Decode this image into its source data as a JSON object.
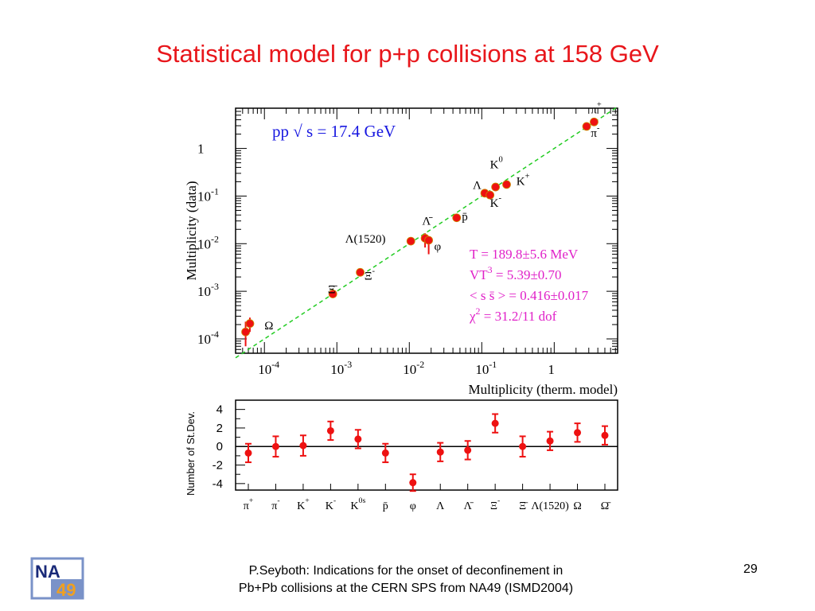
{
  "slide": {
    "title": "Statistical model for p+p collisions at 158 GeV",
    "footer_line1": "P.Seyboth: Indications for the onset of deconfinement in",
    "footer_line2": "Pb+Pb collisions at the CERN SPS from NA49   (ISMD2004)",
    "page_number": "29",
    "logo_text_top": "NA",
    "logo_text_bottom": "49"
  },
  "colors": {
    "title": "#e8161b",
    "points": "#ee1111",
    "fit_line": "#22cc22",
    "params": "#e020c8",
    "label": "#1818e0"
  },
  "chart_data": [
    {
      "type": "scatter",
      "annotation": "pp  √ s = 17.4 GeV",
      "xlabel": "Multiplicity (therm. model)",
      "ylabel": "Multiplicity (data)",
      "xscale": "log",
      "yscale": "log",
      "xlim": [
        4e-05,
        7.5
      ],
      "ylim": [
        5e-05,
        7
      ],
      "x_ticks": [
        {
          "value": 0.0001,
          "base": "10",
          "exp": "-4"
        },
        {
          "value": 0.001,
          "base": "10",
          "exp": "-3"
        },
        {
          "value": 0.01,
          "base": "10",
          "exp": "-2"
        },
        {
          "value": 0.1,
          "base": "10",
          "exp": "-1"
        },
        {
          "value": 1,
          "base": "1",
          "exp": ""
        }
      ],
      "y_ticks": [
        {
          "value": 0.0001,
          "base": "10",
          "exp": "-4"
        },
        {
          "value": 0.001,
          "base": "10",
          "exp": "-3"
        },
        {
          "value": 0.01,
          "base": "10",
          "exp": "-2"
        },
        {
          "value": 0.1,
          "base": "10",
          "exp": "-1"
        },
        {
          "value": 1,
          "base": "1",
          "exp": ""
        }
      ],
      "fit_line": {
        "x": [
          4e-05,
          7.5
        ],
        "y": [
          4e-05,
          7.5
        ]
      },
      "points": [
        {
          "x": 5.5e-05,
          "y": 0.00014,
          "err_lo": 7e-05,
          "err_hi": 0.00023
        },
        {
          "x": 6.3e-05,
          "y": 0.00021,
          "err_lo": 0.00014,
          "err_hi": 0.00028
        },
        {
          "x": 0.00088,
          "y": 0.00088,
          "err_lo": 0.00084,
          "err_hi": 0.00093
        },
        {
          "x": 0.0021,
          "y": 0.0025,
          "err_lo": 0.0024,
          "err_hi": 0.0026
        },
        {
          "x": 0.0105,
          "y": 0.0113,
          "err_lo": 0.0105,
          "err_hi": 0.0121
        },
        {
          "x": 0.0165,
          "y": 0.013,
          "err_lo": 0.0083,
          "err_hi": 0.0165
        },
        {
          "x": 0.0185,
          "y": 0.0118,
          "err_lo": 0.006,
          "err_hi": 0.0142
        },
        {
          "x": 0.045,
          "y": 0.035,
          "err_lo": 0.033,
          "err_hi": 0.037
        },
        {
          "x": 0.11,
          "y": 0.115,
          "err_lo": 0.11,
          "err_hi": 0.12
        },
        {
          "x": 0.13,
          "y": 0.105,
          "err_lo": 0.1,
          "err_hi": 0.11
        },
        {
          "x": 0.155,
          "y": 0.155,
          "err_lo": 0.148,
          "err_hi": 0.162
        },
        {
          "x": 0.22,
          "y": 0.175,
          "err_lo": 0.168,
          "err_hi": 0.182
        },
        {
          "x": 2.8,
          "y": 2.9,
          "err_lo": 2.85,
          "err_hi": 2.95
        },
        {
          "x": 3.55,
          "y": 3.6,
          "err_lo": 3.55,
          "err_hi": 3.65
        }
      ],
      "particle_labels": [
        {
          "text": "π",
          "sup": "+",
          "x": 3.2,
          "y": 5.5
        },
        {
          "text": "π",
          "sup": "-",
          "x": 3.2,
          "y": 1.75
        },
        {
          "text": "K",
          "sup": "0",
          "x": 0.13,
          "y": 0.38
        },
        {
          "text": "K",
          "sup": "+",
          "x": 0.3,
          "y": 0.17
        },
        {
          "text": "K",
          "sup": "-",
          "x": 0.13,
          "y": 0.059
        },
        {
          "text": "Λ",
          "sup": "",
          "x": 0.075,
          "y": 0.14
        },
        {
          "text": "p̄",
          "sup": "",
          "x": 0.053,
          "y": 0.031
        },
        {
          "text": "Λ̄",
          "sup": "",
          "x": 0.015,
          "y": 0.025
        },
        {
          "text": "Λ(1520)",
          "sup": "",
          "x": 0.0013,
          "y": 0.0105
        },
        {
          "text": "φ",
          "sup": "",
          "x": 0.022,
          "y": 0.0073
        },
        {
          "text": "Ξ",
          "sup": "-",
          "x": 0.0024,
          "y": 0.00175
        },
        {
          "text": "Ξ̄",
          "sup": "",
          "x": 0.00075,
          "y": 0.00092
        },
        {
          "text": "Ω",
          "sup": "",
          "x": 0.0001,
          "y": 0.00016
        }
      ],
      "fit_params": [
        {
          "base": "T = 189.8±5.6 MeV",
          "sup": "",
          "rest": ""
        },
        {
          "base": "VT",
          "sup": "3",
          "rest": " = 5.39±0.70"
        },
        {
          "base": "< s s̄ > = 0.416±0.017",
          "sup": "",
          "rest": ""
        },
        {
          "base": "χ",
          "sup": "2",
          "rest": " = 31.2/11 dof"
        }
      ]
    },
    {
      "type": "scatter",
      "ylabel": "Number of St.Dev.",
      "ylim": [
        -4.7,
        5
      ],
      "y_ticks": [
        4,
        2,
        0,
        -2,
        -4
      ],
      "categories": [
        "π+",
        "π-",
        "K+",
        "K-",
        "K0s",
        "p̄",
        "φ",
        "Λ",
        "Λ̄",
        "Ξ-",
        "Ξ̄",
        "Λ(1520)",
        "Ω",
        "Ω̄"
      ],
      "category_labels": [
        {
          "base": "π",
          "sup": "+"
        },
        {
          "base": "π",
          "sup": "-"
        },
        {
          "base": "K",
          "sup": "+"
        },
        {
          "base": "K",
          "sup": "-"
        },
        {
          "base": "K",
          "sup": "0s"
        },
        {
          "base": "p̄",
          "sup": ""
        },
        {
          "base": "φ",
          "sup": ""
        },
        {
          "base": "Λ",
          "sup": ""
        },
        {
          "base": "Λ̄",
          "sup": ""
        },
        {
          "base": "Ξ",
          "sup": "-"
        },
        {
          "base": "Ξ̄",
          "sup": ""
        },
        {
          "base": "Λ(1520)",
          "sup": ""
        },
        {
          "base": "Ω",
          "sup": ""
        },
        {
          "base": "Ω̄",
          "sup": ""
        }
      ],
      "points": [
        {
          "x": 0,
          "y": -0.7,
          "err": 1.0
        },
        {
          "x": 1,
          "y": 0.0,
          "err": 1.1
        },
        {
          "x": 2,
          "y": 0.1,
          "err": 1.1
        },
        {
          "x": 3,
          "y": 1.7,
          "err": 1.0
        },
        {
          "x": 4,
          "y": 0.8,
          "err": 1.0
        },
        {
          "x": 5,
          "y": -0.7,
          "err": 1.0
        },
        {
          "x": 6,
          "y": -3.9,
          "err": 0.9
        },
        {
          "x": 7,
          "y": -0.6,
          "err": 1.0
        },
        {
          "x": 8,
          "y": -0.4,
          "err": 1.0
        },
        {
          "x": 9,
          "y": 2.5,
          "err": 1.0
        },
        {
          "x": 10,
          "y": 0.0,
          "err": 1.1
        },
        {
          "x": 11,
          "y": 0.6,
          "err": 1.0
        },
        {
          "x": 12,
          "y": 1.5,
          "err": 1.0
        },
        {
          "x": 13,
          "y": 1.2,
          "err": 1.0
        }
      ]
    }
  ]
}
